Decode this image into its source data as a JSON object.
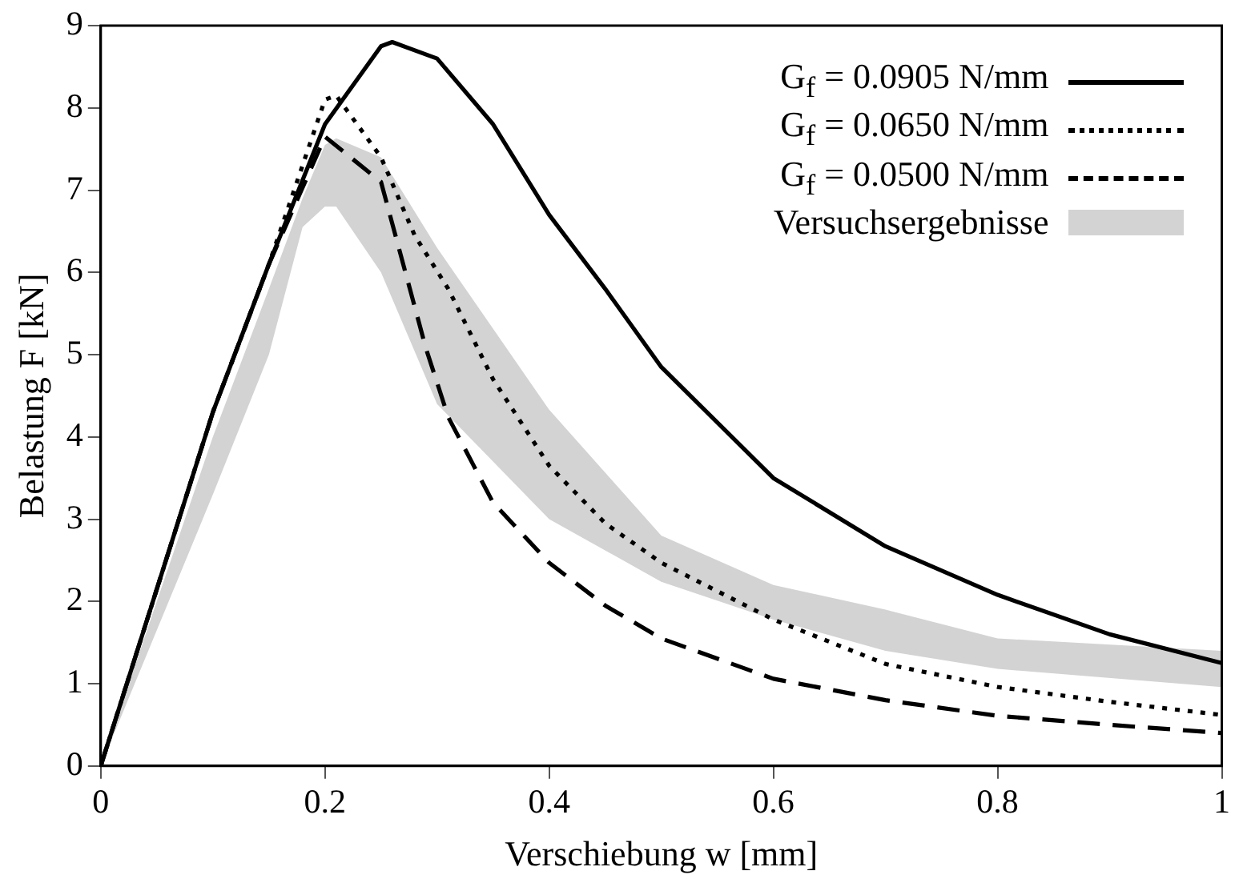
{
  "chart_data": {
    "type": "line",
    "xlabel": "Verschiebung w [mm]",
    "ylabel": "Belastung F [kN]",
    "xlim": [
      0,
      1
    ],
    "xticks": [
      0,
      0.2,
      0.4,
      0.6,
      0.8,
      1
    ],
    "ylim": [
      0,
      9
    ],
    "yticks": [
      0,
      1,
      2,
      3,
      4,
      5,
      6,
      7,
      8,
      9
    ],
    "grid": false,
    "legend": "top right",
    "marker": "none",
    "series": [
      {
        "name": "G$_{f}$ = 0.0905 N/mm",
        "color": "#000000",
        "line_style": "solid",
        "x": [
          0,
          0.05,
          0.1,
          0.15,
          0.2,
          0.25,
          0.26,
          0.3,
          0.35,
          0.4,
          0.45,
          0.5,
          0.6,
          0.7,
          0.8,
          0.9,
          1
        ],
        "values": [
          0,
          2.15,
          4.3,
          6.1,
          7.8,
          8.75,
          8.8,
          8.6,
          7.8,
          6.7,
          5.8,
          4.85,
          3.5,
          2.67,
          2.08,
          1.6,
          1.25
        ]
      },
      {
        "name": "G$_{f}$ = 0.0650 N/mm",
        "color": "#000000",
        "line_style": "dotted",
        "x": [
          0,
          0.05,
          0.1,
          0.15,
          0.2,
          0.21,
          0.25,
          0.28,
          0.31,
          0.35,
          0.4,
          0.45,
          0.5,
          0.6,
          0.7,
          0.8,
          0.9,
          1
        ],
        "values": [
          0,
          2.15,
          4.3,
          6.1,
          8.1,
          8.15,
          7.4,
          6.45,
          5.8,
          4.7,
          3.65,
          2.95,
          2.47,
          1.78,
          1.24,
          0.96,
          0.78,
          0.62
        ]
      },
      {
        "name": "G$_{f}$ = 0.0500 N/mm",
        "color": "#000000",
        "line_style": "dashed",
        "x": [
          0,
          0.05,
          0.1,
          0.15,
          0.2,
          0.25,
          0.29,
          0.31,
          0.35,
          0.4,
          0.45,
          0.5,
          0.6,
          0.7,
          0.8,
          0.9,
          1
        ],
        "values": [
          0,
          2.15,
          4.3,
          6.1,
          7.65,
          7.1,
          5.08,
          4.24,
          3.2,
          2.47,
          1.95,
          1.55,
          1.06,
          0.8,
          0.61,
          0.5,
          0.4
        ]
      },
      {
        "name": "Versuchsergebnisse",
        "type": "area",
        "color": "#d3d3d3",
        "x": [
          0,
          0.1,
          0.15,
          0.18,
          0.2,
          0.21,
          0.25,
          0.3,
          0.4,
          0.5,
          0.6,
          0.7,
          0.8,
          1
        ],
        "values": [
          null,
          null,
          null,
          null,
          null,
          null,
          null,
          null,
          null,
          null,
          null,
          null,
          null,
          null
        ],
        "lower": [
          0,
          3.3,
          5.0,
          6.55,
          6.8,
          6.8,
          6.0,
          4.4,
          3.0,
          2.24,
          1.78,
          1.4,
          1.18,
          0.96
        ],
        "upper": [
          0,
          4.0,
          5.8,
          6.9,
          7.55,
          7.63,
          7.4,
          6.3,
          4.33,
          2.8,
          2.2,
          1.9,
          1.55,
          1.4
        ]
      }
    ]
  }
}
